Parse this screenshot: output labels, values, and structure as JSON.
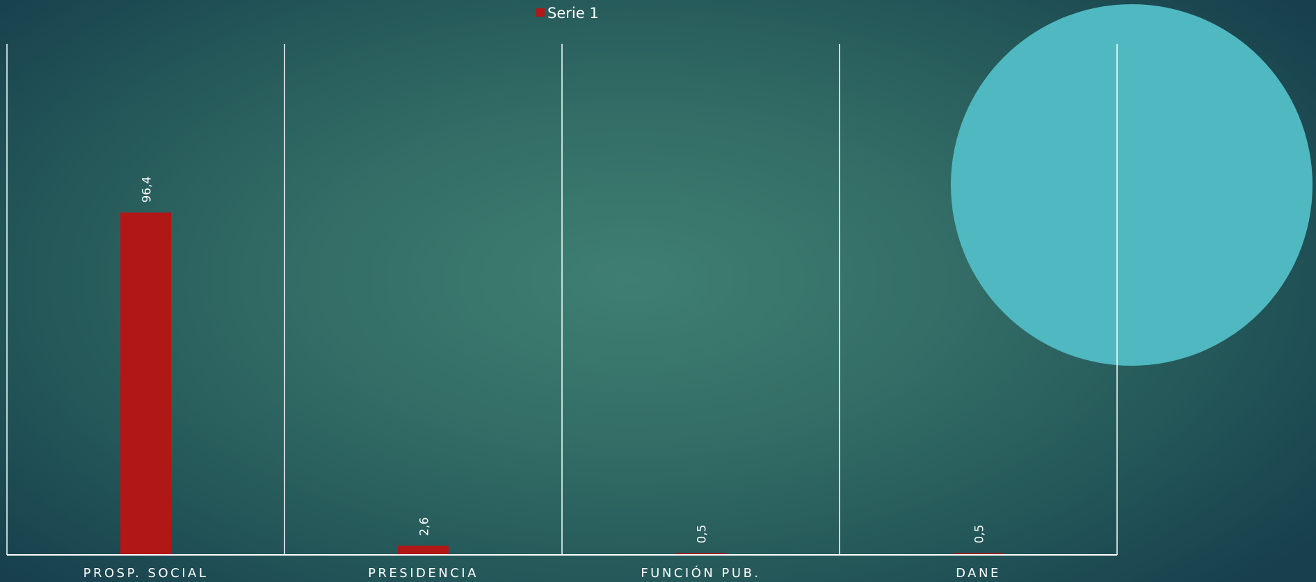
{
  "chart_data": {
    "type": "bar",
    "categories": [
      "PROSP. SOCIAL",
      "PRESIDENCIA",
      "FUNCIÓN PUB.",
      "DANE"
    ],
    "series": [
      {
        "name": "Serie 1",
        "values": [
          96.4,
          2.6,
          0.5,
          0.5
        ],
        "labels": [
          "96,4",
          "2,6",
          "0,5",
          "0,5"
        ],
        "color": "#b01717"
      }
    ],
    "legend": "top",
    "grid": "vertical category dividers",
    "ylim": [
      0,
      120
    ]
  },
  "colors": {
    "axis": "#ffffff",
    "decor_circle": "#4fb8c0"
  }
}
